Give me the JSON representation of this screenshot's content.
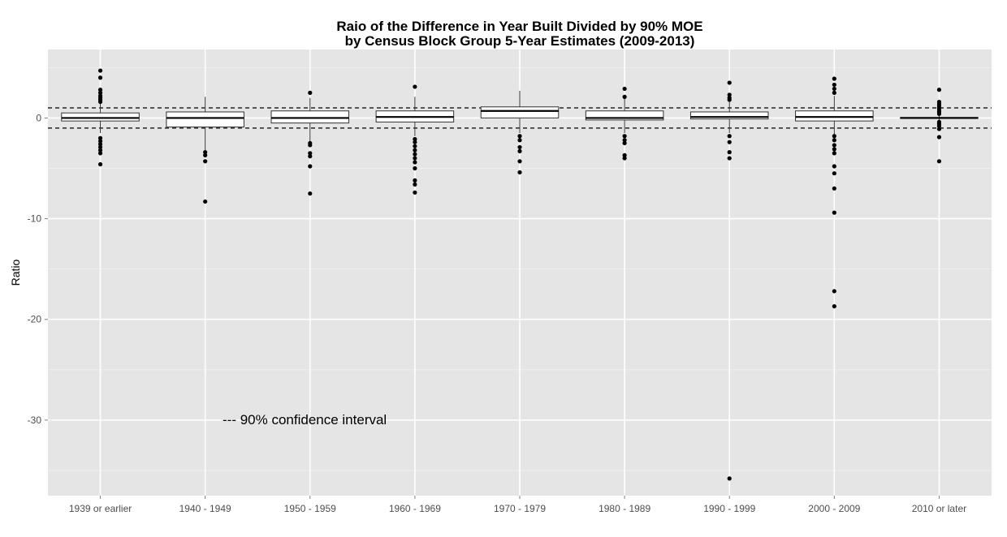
{
  "chart_data": {
    "type": "box",
    "title": "Raio of the Difference in Year Built Divided by 90% MOE",
    "subtitle": "by Census Block Group 5-Year Estimates (2009-2013)",
    "xlabel": "",
    "ylabel": "Ratio",
    "ylim": [
      -37.5,
      6.8
    ],
    "yticks": [
      0,
      -10,
      -20,
      -30
    ],
    "grid": true,
    "reference_lines": [
      1,
      -1
    ],
    "annotation": "--- 90% confidence interval",
    "categories": [
      "1939 or earlier",
      "1940 - 1949",
      "1950 - 1959",
      "1960 - 1969",
      "1970 - 1979",
      "1980 - 1989",
      "1990 - 1999",
      "2000 - 2009",
      "2010 or later"
    ],
    "boxes": [
      {
        "q1": -0.3,
        "median": 0.0,
        "q3": 0.5,
        "whisker_low": -1.5,
        "whisker_high": 1.5,
        "outliers": [
          4.7,
          4.0,
          2.8,
          2.5,
          2.2,
          2.0,
          1.8,
          1.6,
          -2.0,
          -2.3,
          -2.6,
          -2.9,
          -3.2,
          -3.5,
          -4.6
        ]
      },
      {
        "q1": -0.9,
        "median": 0.0,
        "q3": 0.6,
        "whisker_low": -3.2,
        "whisker_high": 2.1,
        "outliers": [
          -3.4,
          -3.7,
          -4.3,
          -8.3
        ]
      },
      {
        "q1": -0.5,
        "median": 0.0,
        "q3": 0.7,
        "whisker_low": -2.3,
        "whisker_high": 2.0,
        "outliers": [
          2.5,
          -2.5,
          -2.7,
          -3.5,
          -3.8,
          -4.8,
          -7.5
        ]
      },
      {
        "q1": -0.4,
        "median": 0.1,
        "q3": 0.7,
        "whisker_low": -1.8,
        "whisker_high": 2.1,
        "outliers": [
          3.1,
          -2.1,
          -2.4,
          -2.8,
          -3.2,
          -3.6,
          -4.0,
          -4.4,
          -5.0,
          -6.2,
          -6.6,
          -7.4
        ]
      },
      {
        "q1": 0.0,
        "median": 0.7,
        "q3": 1.1,
        "whisker_low": -1.5,
        "whisker_high": 2.7,
        "outliers": [
          -1.8,
          -2.2,
          -2.9,
          -3.3,
          -4.3,
          -5.4
        ]
      },
      {
        "q1": -0.2,
        "median": 0.0,
        "q3": 0.7,
        "whisker_low": -1.5,
        "whisker_high": 2.0,
        "outliers": [
          2.9,
          2.1,
          -1.8,
          -2.2,
          -2.5,
          -3.7,
          -4.0
        ]
      },
      {
        "q1": -0.1,
        "median": 0.1,
        "q3": 0.6,
        "whisker_low": -1.5,
        "whisker_high": 1.7,
        "outliers": [
          3.5,
          2.3,
          2.0,
          1.8,
          -1.8,
          -2.4,
          -3.4,
          -4.0,
          -35.8
        ]
      },
      {
        "q1": -0.3,
        "median": 0.1,
        "q3": 0.7,
        "whisker_low": -1.6,
        "whisker_high": 2.2,
        "outliers": [
          3.9,
          3.3,
          2.9,
          2.5,
          -1.8,
          -2.2,
          -2.7,
          -3.1,
          -3.5,
          -4.8,
          -5.5,
          -7.0,
          -9.4,
          -17.2,
          -18.7
        ]
      },
      {
        "q1": -0.05,
        "median": 0.0,
        "q3": 0.05,
        "whisker_low": -0.8,
        "whisker_high": 0.9,
        "outliers": [
          2.8,
          1.6,
          1.4,
          1.2,
          1.0,
          0.8,
          0.6,
          0.4,
          -0.4,
          -0.6,
          -0.8,
          -1.1,
          -1.9,
          -4.3
        ]
      }
    ]
  }
}
